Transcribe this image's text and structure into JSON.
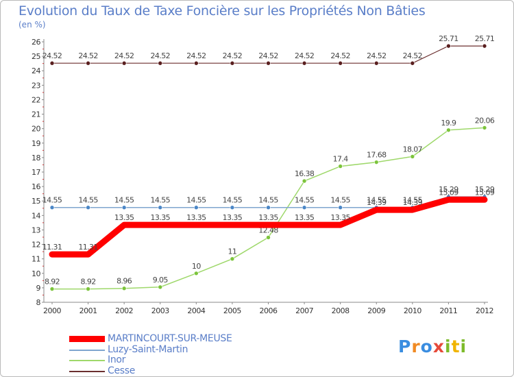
{
  "header": {
    "title": "Evolution du Taux de Taxe Foncière sur les Propriétés Non Bâties",
    "unit": "(en %)"
  },
  "logo": {
    "text": "Proxiti",
    "letters": [
      "P",
      "r",
      "o",
      "x",
      "i",
      "t",
      "i"
    ],
    "colors": [
      "#3a8de0",
      "#f08a24",
      "#3a8de0",
      "#e64a3a",
      "#7dbb2a",
      "#f0b400",
      "#7dbb2a"
    ]
  },
  "chart_data": {
    "type": "line",
    "title": "Evolution du Taux de Taxe Foncière sur les Propriétés Non Bâties",
    "ylabel": "(en %)",
    "xlabel": "",
    "ylim": [
      8,
      26
    ],
    "yticks": [
      8,
      9,
      10,
      11,
      12,
      13,
      14,
      15,
      16,
      17,
      18,
      19,
      20,
      21,
      22,
      23,
      24,
      25,
      26
    ],
    "categories": [
      "2000",
      "2001",
      "2002",
      "2003",
      "2004",
      "2005",
      "2006",
      "2007",
      "2008",
      "2009",
      "2010",
      "2011",
      "2012"
    ],
    "series": [
      {
        "name": "Cesse",
        "color": "#6b2f2f",
        "marker": "#5a1f1f",
        "width": 1.2,
        "values": [
          24.52,
          24.52,
          24.52,
          24.52,
          24.52,
          24.52,
          24.52,
          24.52,
          24.52,
          24.52,
          24.52,
          25.71,
          25.71
        ],
        "labels": [
          "24.52",
          "24.52",
          "24.52",
          "24.52",
          "24.52",
          "24.52",
          "24.52",
          "24.52",
          "24.52",
          "24.52",
          "24.52",
          "25.71",
          "25.71"
        ]
      },
      {
        "name": "Inor",
        "color": "#9ed86a",
        "marker": "#7cc43c",
        "width": 1.5,
        "values": [
          8.92,
          8.92,
          8.96,
          9.05,
          10,
          11,
          12.48,
          16.38,
          17.4,
          17.68,
          18.07,
          19.9,
          20.06
        ],
        "labels": [
          "8.92",
          "8.92",
          "8.96",
          "9.05",
          "10",
          "11",
          "12.48",
          "16.38",
          "17.4",
          "17.68",
          "18.07",
          "19.9",
          "20.06"
        ]
      },
      {
        "name": "Luzy-Saint-Martin",
        "color": "#7fa6cf",
        "marker": "#4a86c6",
        "width": 1.5,
        "values": [
          14.55,
          14.55,
          14.55,
          14.55,
          14.55,
          14.55,
          14.55,
          14.55,
          14.55,
          14.55,
          14.55,
          15.29,
          15.29
        ],
        "labels": [
          "14.55",
          "14.55",
          "14.55",
          "14.55",
          "14.55",
          "14.55",
          "14.55",
          "14.55",
          "14.55",
          "14.55",
          "14.55",
          "15.29",
          "15.29"
        ]
      },
      {
        "name": "MARTINCOURT-SUR-MEUSE",
        "color": "#ff0000",
        "marker": "#ff0000",
        "width": 9,
        "values": [
          11.31,
          11.31,
          13.35,
          13.35,
          13.35,
          13.35,
          13.35,
          13.35,
          13.35,
          14.39,
          14.39,
          15.09,
          15.09
        ],
        "labels": [
          "11.31",
          "11.31",
          "13.35",
          "13.35",
          "13.35",
          "13.35",
          "13.35",
          "13.35",
          "13.35",
          "14.39",
          "14.39",
          "15.09",
          "15.09"
        ]
      }
    ],
    "legend": [
      "MARTINCOURT-SUR-MEUSE",
      "Luzy-Saint-Martin",
      "Inor",
      "Cesse"
    ],
    "legend_position": "bottom-left",
    "grid": false
  }
}
